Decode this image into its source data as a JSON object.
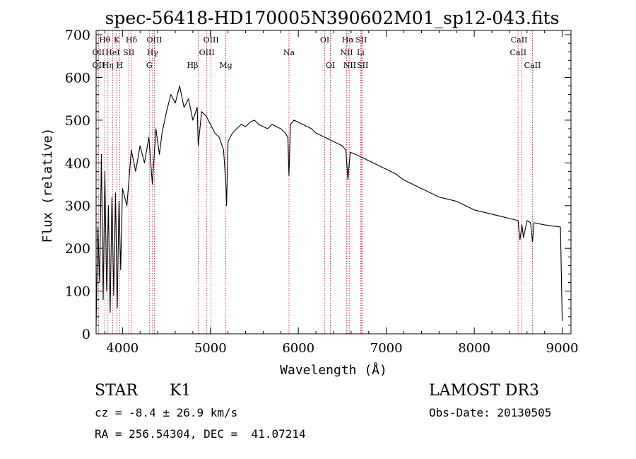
{
  "chart_data": {
    "type": "line",
    "title": "spec-56418-HD170005N390602M01_sp12-043.fits",
    "xlabel": "Wavelength (Å)",
    "ylabel": "Flux (relative)",
    "xlim": [
      3700,
      9100
    ],
    "ylim": [
      0,
      710
    ],
    "xticks": [
      4000,
      5000,
      6000,
      7000,
      8000,
      9000
    ],
    "yticks": [
      0,
      100,
      200,
      300,
      400,
      500,
      600,
      700
    ],
    "grid": false,
    "series": [
      {
        "name": "spectrum",
        "x": [
          3700,
          3720,
          3740,
          3760,
          3780,
          3800,
          3820,
          3840,
          3860,
          3880,
          3900,
          3920,
          3940,
          3960,
          3980,
          4000,
          4050,
          4100,
          4150,
          4200,
          4250,
          4300,
          4340,
          4380,
          4420,
          4450,
          4500,
          4550,
          4600,
          4650,
          4700,
          4750,
          4800,
          4850,
          4861,
          4900,
          4950,
          5000,
          5050,
          5100,
          5150,
          5175,
          5183,
          5200,
          5250,
          5300,
          5350,
          5400,
          5450,
          5500,
          5550,
          5600,
          5650,
          5700,
          5750,
          5800,
          5850,
          5880,
          5893,
          5910,
          5950,
          6000,
          6050,
          6100,
          6150,
          6200,
          6250,
          6300,
          6350,
          6400,
          6450,
          6500,
          6540,
          6563,
          6590,
          6650,
          6700,
          6750,
          6800,
          6850,
          6900,
          7000,
          7100,
          7200,
          7300,
          7400,
          7500,
          7600,
          7700,
          7800,
          7900,
          8000,
          8100,
          8200,
          8300,
          8400,
          8498,
          8520,
          8542,
          8560,
          8600,
          8640,
          8662,
          8680,
          8720,
          8800,
          8900,
          8980,
          9000
        ],
        "y": [
          20,
          250,
          120,
          420,
          80,
          380,
          100,
          300,
          50,
          320,
          90,
          330,
          60,
          310,
          150,
          340,
          300,
          430,
          380,
          440,
          400,
          460,
          350,
          480,
          420,
          470,
          520,
          560,
          540,
          580,
          530,
          550,
          500,
          530,
          440,
          520,
          510,
          490,
          470,
          460,
          430,
          350,
          300,
          450,
          470,
          480,
          490,
          485,
          495,
          500,
          490,
          485,
          480,
          490,
          485,
          480,
          470,
          460,
          370,
          490,
          500,
          495,
          490,
          485,
          480,
          470,
          465,
          460,
          455,
          450,
          445,
          440,
          430,
          360,
          425,
          420,
          415,
          410,
          405,
          400,
          395,
          385,
          375,
          360,
          350,
          340,
          330,
          320,
          315,
          310,
          300,
          290,
          285,
          280,
          275,
          270,
          265,
          220,
          255,
          225,
          265,
          260,
          215,
          260,
          258,
          255,
          252,
          250,
          30
        ]
      }
    ],
    "lines": [
      {
        "name": "OII",
        "wl": 3727
      },
      {
        "name": "Hθ",
        "wl": 3798
      },
      {
        "name": "Hη",
        "wl": 3835
      },
      {
        "name": "HeI",
        "wl": 3889
      },
      {
        "name": "K",
        "wl": 3934
      },
      {
        "name": "H",
        "wl": 3968
      },
      {
        "name": "SII",
        "wl": 4072
      },
      {
        "name": "Hδ",
        "wl": 4102
      },
      {
        "name": "G",
        "wl": 4305
      },
      {
        "name": "Hγ",
        "wl": 4341
      },
      {
        "name": "OIII",
        "wl": 4363
      },
      {
        "name": "Hβ",
        "wl": 4861
      },
      {
        "name": "OIII",
        "wl": 4959
      },
      {
        "name": "OIII",
        "wl": 5007
      },
      {
        "name": "Mg",
        "wl": 5175
      },
      {
        "name": "Na",
        "wl": 5893
      },
      {
        "name": "OI",
        "wl": 6300
      },
      {
        "name": "OI",
        "wl": 6364
      },
      {
        "name": "NII",
        "wl": 6548
      },
      {
        "name": "Hα",
        "wl": 6563
      },
      {
        "name": "NII",
        "wl": 6584
      },
      {
        "name": "Li",
        "wl": 6708
      },
      {
        "name": "SII",
        "wl": 6716
      },
      {
        "name": "SII",
        "wl": 6731
      },
      {
        "name": "CaII",
        "wl": 8498
      },
      {
        "name": "CaII",
        "wl": 8542
      },
      {
        "name": "CaII",
        "wl": 8662
      }
    ],
    "line_labels": [
      {
        "text": "OII",
        "wl": 3727,
        "row": 1,
        "anchor": "middle"
      },
      {
        "text": "OII",
        "wl": 3727,
        "row": 2,
        "anchor": "middle"
      },
      {
        "text": "Hθ",
        "wl": 3798,
        "row": 0,
        "anchor": "middle"
      },
      {
        "text": "Hη",
        "wl": 3835,
        "row": 2,
        "anchor": "middle"
      },
      {
        "text": "HeI",
        "wl": 3889,
        "row": 1,
        "anchor": "middle"
      },
      {
        "text": "K",
        "wl": 3934,
        "row": 0,
        "anchor": "middle"
      },
      {
        "text": "H",
        "wl": 3968,
        "row": 2,
        "anchor": "middle"
      },
      {
        "text": "SII",
        "wl": 4072,
        "row": 1,
        "anchor": "middle"
      },
      {
        "text": "Hδ",
        "wl": 4102,
        "row": 0,
        "anchor": "middle"
      },
      {
        "text": "G",
        "wl": 4305,
        "row": 2,
        "anchor": "middle"
      },
      {
        "text": "Hγ",
        "wl": 4341,
        "row": 1,
        "anchor": "middle"
      },
      {
        "text": "OIII",
        "wl": 4363,
        "row": 0,
        "anchor": "middle"
      },
      {
        "text": "Hβ",
        "wl": 4861,
        "row": 2,
        "anchor": "end"
      },
      {
        "text": "OIII",
        "wl": 4959,
        "row": 1,
        "anchor": "middle"
      },
      {
        "text": "OIII",
        "wl": 5007,
        "row": 0,
        "anchor": "middle"
      },
      {
        "text": "Mg",
        "wl": 5175,
        "row": 2,
        "anchor": "middle"
      },
      {
        "text": "Na",
        "wl": 5893,
        "row": 1,
        "anchor": "middle"
      },
      {
        "text": "OI",
        "wl": 6300,
        "row": 0,
        "anchor": "middle"
      },
      {
        "text": "OI",
        "wl": 6364,
        "row": 2,
        "anchor": "middle"
      },
      {
        "text": "Hα",
        "wl": 6563,
        "row": 0,
        "anchor": "middle"
      },
      {
        "text": "NII",
        "wl": 6548,
        "row": 1,
        "anchor": "middle"
      },
      {
        "text": "NII",
        "wl": 6584,
        "row": 2,
        "anchor": "middle"
      },
      {
        "text": "SII",
        "wl": 6716,
        "row": 0,
        "anchor": "middle"
      },
      {
        "text": "Li",
        "wl": 6708,
        "row": 1,
        "anchor": "middle"
      },
      {
        "text": "SII",
        "wl": 6731,
        "row": 2,
        "anchor": "middle"
      },
      {
        "text": "CaII",
        "wl": 8510,
        "row": 0,
        "anchor": "middle"
      },
      {
        "text": "CaII",
        "wl": 8500,
        "row": 1,
        "anchor": "middle"
      },
      {
        "text": "CaII",
        "wl": 8662,
        "row": 2,
        "anchor": "middle"
      }
    ],
    "colors": {
      "spectrum": "#000000",
      "line_marker": "#c8102e",
      "axis": "#000000",
      "text": "#000000"
    }
  },
  "info": {
    "object_class": "STAR",
    "subclass": "K1",
    "survey": "LAMOST DR3",
    "cz": "cz = -8.4 ± 26.9 km/s",
    "obs_date": "Obs-Date: 20130505",
    "coords": "RA = 256.54304, DEC =  41.07214"
  }
}
